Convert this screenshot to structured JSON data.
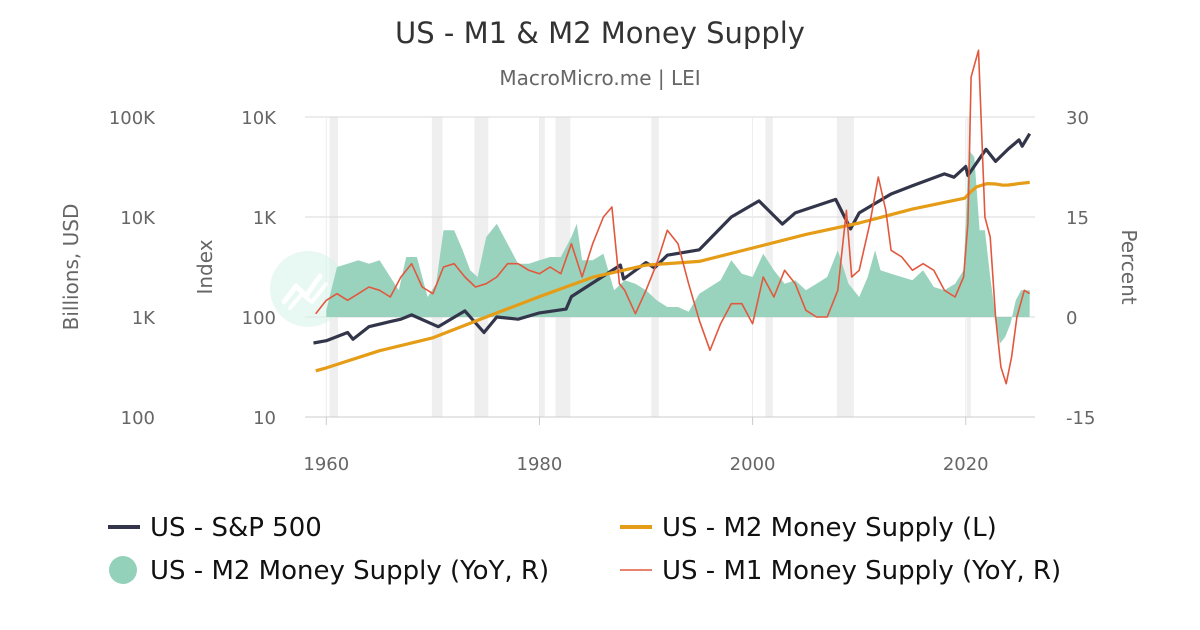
{
  "title": "US - M1 & M2 Money Supply",
  "subtitle": "MacroMicro.me | LEI",
  "chart_data": {
    "type": "line",
    "x_axis": {
      "min": 1958,
      "max": 2026.5,
      "ticks": [
        1960,
        1980,
        2000,
        2020
      ]
    },
    "axes": {
      "billions": {
        "label": "Billions, USD",
        "scale": "log",
        "min": 100,
        "max": 100000,
        "ticks": [
          {
            "value": 100,
            "label": "100"
          },
          {
            "value": 1000,
            "label": "1K"
          },
          {
            "value": 10000,
            "label": "10K"
          },
          {
            "value": 100000,
            "label": "100K"
          }
        ]
      },
      "index": {
        "label": "Index",
        "scale": "log",
        "min": 10,
        "max": 10000,
        "ticks": [
          {
            "value": 10,
            "label": "10"
          },
          {
            "value": 100,
            "label": "100"
          },
          {
            "value": 1000,
            "label": "1K"
          },
          {
            "value": 10000,
            "label": "10K"
          }
        ]
      },
      "percent": {
        "label": "Percent",
        "scale": "linear",
        "min": -15,
        "max": 30,
        "ticks": [
          {
            "value": -15,
            "label": "-15"
          },
          {
            "value": 0,
            "label": "0"
          },
          {
            "value": 15,
            "label": "15"
          },
          {
            "value": 30,
            "label": "30"
          }
        ]
      }
    },
    "recessions": [
      [
        1960.3,
        1961.1
      ],
      [
        1969.9,
        1970.9
      ],
      [
        1973.9,
        1975.2
      ],
      [
        1980.0,
        1980.5
      ],
      [
        1981.5,
        1982.9
      ],
      [
        1990.5,
        1991.2
      ],
      [
        2001.2,
        2001.9
      ],
      [
        2007.9,
        2009.5
      ],
      [
        2020.1,
        2020.4
      ]
    ],
    "series": [
      {
        "name": "US - S&P 500",
        "axis": "index",
        "color": "#33364a",
        "style": "line",
        "legend_marker": "line",
        "x": [
          1958.8,
          1960,
          1962,
          1962.5,
          1964,
          1966,
          1967,
          1968,
          1970.5,
          1973,
          1974.8,
          1976,
          1978,
          1980,
          1982.5,
          1983,
          1987.6,
          1987.9,
          1990,
          1990.8,
          1992,
          1995,
          1998,
          2000.6,
          2002.8,
          2004,
          2007.8,
          2009.2,
          2010,
          2013,
          2015,
          2018,
          2018.9,
          2020,
          2020.2,
          2021.9,
          2022.8,
          2024,
          2025,
          2025.3,
          2026
        ],
        "y": [
          55,
          58,
          70,
          60,
          80,
          90,
          95,
          105,
          80,
          115,
          70,
          100,
          95,
          110,
          120,
          160,
          330,
          240,
          350,
          310,
          415,
          470,
          1000,
          1450,
          850,
          1100,
          1500,
          760,
          1100,
          1700,
          2050,
          2700,
          2500,
          3200,
          2600,
          4750,
          3600,
          4800,
          5900,
          5100,
          6800
        ]
      },
      {
        "name": "US - M2 Money Supply (L)",
        "axis": "billions",
        "color": "#e59c16",
        "style": "line",
        "legend_marker": "line",
        "x": [
          1959,
          1960,
          1965,
          1970,
          1975,
          1980,
          1985,
          1990,
          1995,
          2000,
          2005,
          2010,
          2015,
          2019.9,
          2020.5,
          2021,
          2022,
          2022.8,
          2023.5,
          2024,
          2025,
          2026
        ],
        "y": [
          290,
          310,
          460,
          620,
          1000,
          1600,
          2500,
          3300,
          3600,
          4900,
          6700,
          8700,
          12000,
          15400,
          18000,
          20000,
          21600,
          21400,
          20800,
          20900,
          21600,
          22200
        ]
      },
      {
        "name": "US - M2 Money Supply (YoY, R)",
        "axis": "percent",
        "color": "#94d1ba",
        "style": "area",
        "legend_marker": "circle",
        "x": [
          1960.0,
          1961,
          1962,
          1963,
          1964,
          1965,
          1966,
          1966.8,
          1967.5,
          1968.5,
          1969.5,
          1970.3,
          1971,
          1972,
          1972.8,
          1973.5,
          1974.2,
          1975,
          1976,
          1977,
          1978,
          1979,
          1980,
          1981,
          1982,
          1983,
          1983.5,
          1984,
          1985,
          1986,
          1987,
          1988,
          1989,
          1990,
          1991,
          1992,
          1993,
          1994,
          1995,
          1996,
          1997,
          1998,
          1999,
          2000,
          2001,
          2002,
          2003,
          2004,
          2005,
          2006,
          2007,
          2008,
          2009,
          2010,
          2010.8,
          2011.5,
          2012,
          2013,
          2014,
          2015,
          2016,
          2017,
          2018,
          2019,
          2019.8,
          2020.3,
          2020.8,
          2021.3,
          2021.8,
          2022.3,
          2022.8,
          2023.2,
          2023.7,
          2024.2,
          2024.7,
          2025.2,
          2026
        ],
        "y": [
          1.0,
          7.5,
          8.0,
          8.5,
          8.0,
          8.5,
          6.0,
          4.0,
          9.0,
          9.0,
          3.0,
          5.0,
          13.0,
          13.0,
          10.0,
          7.0,
          6.0,
          12.0,
          14.0,
          11.0,
          8.0,
          8.0,
          8.5,
          9.0,
          9.0,
          12.0,
          14.0,
          8.5,
          8.5,
          9.5,
          4.0,
          5.5,
          5.0,
          4.0,
          2.5,
          1.5,
          1.5,
          0.8,
          3.5,
          4.5,
          5.5,
          8.5,
          6.5,
          6.0,
          9.5,
          7.0,
          5.0,
          5.5,
          4.0,
          5.0,
          6.0,
          10.0,
          5.0,
          3.0,
          6.0,
          10.0,
          7.0,
          6.5,
          6.0,
          5.5,
          7.0,
          4.5,
          4.0,
          5.0,
          7.0,
          25.0,
          24.0,
          13.0,
          13.0,
          6.0,
          0.0,
          -4.0,
          -3.0,
          -1.0,
          2.5,
          4.0,
          4.0
        ]
      },
      {
        "name": "US - M1 Money Supply (YoY, R)",
        "axis": "percent",
        "color": "#e2583e",
        "style": "line",
        "legend_marker": "line",
        "x": [
          1959,
          1960,
          1961,
          1962,
          1963,
          1964,
          1965,
          1966,
          1967,
          1968,
          1969,
          1970,
          1971,
          1972,
          1973,
          1974,
          1975,
          1976,
          1977,
          1978,
          1979,
          1980,
          1981,
          1982,
          1983,
          1984,
          1985,
          1986,
          1986.8,
          1987.5,
          1988,
          1989,
          1990,
          1991,
          1992,
          1993,
          1994,
          1995,
          1996,
          1997,
          1998,
          1999,
          2000,
          2001,
          2002,
          2003,
          2004,
          2005,
          2006,
          2007,
          2008,
          2008.8,
          2009.3,
          2010,
          2011,
          2011.8,
          2012.5,
          2013,
          2014,
          2015,
          2016,
          2017,
          2018,
          2019,
          2019.8,
          2020.2,
          2020.5,
          2021.2,
          2021.8,
          2022.3,
          2022.8,
          2023.3,
          2023.8,
          2024.3,
          2024.8,
          2025.5,
          2026
        ],
        "y": [
          0.5,
          2.5,
          3.5,
          2.5,
          3.5,
          4.5,
          4.0,
          3.0,
          6.0,
          8.0,
          4.5,
          3.5,
          7.5,
          8.0,
          6.0,
          4.5,
          5.0,
          6.0,
          8.0,
          8.0,
          7.0,
          6.5,
          7.5,
          6.5,
          11.0,
          6.0,
          11.0,
          15.0,
          16.5,
          5.0,
          4.0,
          0.5,
          4.0,
          8.0,
          13.0,
          11.0,
          5.0,
          -0.5,
          -5.0,
          -1.0,
          2.0,
          2.0,
          -1.0,
          6.0,
          3.0,
          7.0,
          5.0,
          1.0,
          0.0,
          0.0,
          4.0,
          16.0,
          6.0,
          7.0,
          14.0,
          21.0,
          16.0,
          10.0,
          9.0,
          7.0,
          8.0,
          7.0,
          4.0,
          3.0,
          6.0,
          14.0,
          36.0,
          40.0,
          15.0,
          12.0,
          0.0,
          -7.5,
          -10.0,
          -6.0,
          0.0,
          4.0,
          3.5
        ]
      }
    ]
  }
}
